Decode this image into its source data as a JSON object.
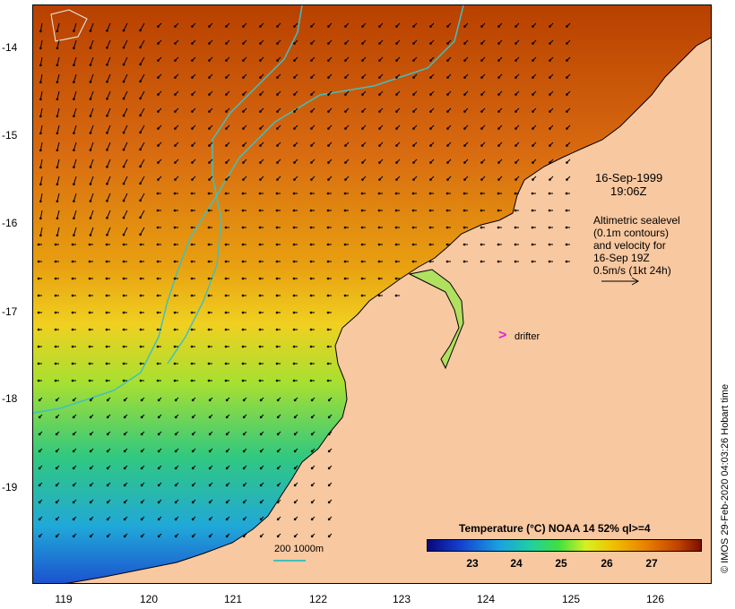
{
  "map": {
    "date": "16-Sep-1999",
    "time": "19:06Z",
    "legend_lines": [
      "Altimetric sealevel",
      "(0.1m contours)",
      "and velocity for",
      "16-Sep 19Z",
      "0.5m/s (1kt 24h)"
    ],
    "drifter_label": "drifter",
    "drifter_marker": ">",
    "scale_label": "200  1000m",
    "colorbar_title": "Temperature (°C) NOAA 14 52% ql>=4",
    "colorbar_ticks": [
      "23",
      "24",
      "25",
      "26",
      "27"
    ],
    "credit": "© IMOS 29-Feb-2020 04:03:26 Hobart time",
    "lat_ticks": [
      "-14",
      "-15",
      "-16",
      "-17",
      "-18",
      "-19"
    ],
    "lon_ticks": [
      "119",
      "120",
      "121",
      "122",
      "123",
      "124",
      "125",
      "126"
    ],
    "colors": {
      "land": "#f8c8a0",
      "contour": "#40c0c0",
      "drifter": "#e020e0"
    }
  }
}
